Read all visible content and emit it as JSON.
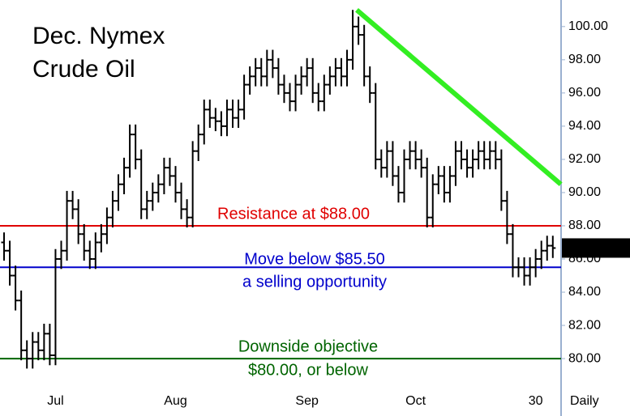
{
  "chart_data": {
    "type": "ohlc",
    "title_lines": [
      "Dec. Nymex",
      "Crude Oil"
    ],
    "x_label": "Daily",
    "categories": [
      null,
      null,
      null,
      null,
      null,
      null,
      null,
      null,
      null,
      "Jul",
      null,
      null,
      null,
      null,
      null,
      null,
      null,
      null,
      null,
      null,
      null,
      null,
      null,
      null,
      null,
      null,
      null,
      null,
      null,
      null,
      "Aug",
      null,
      null,
      null,
      null,
      null,
      null,
      null,
      null,
      null,
      null,
      null,
      null,
      null,
      null,
      null,
      null,
      null,
      null,
      null,
      null,
      null,
      null,
      "Sep",
      null,
      null,
      null,
      null,
      null,
      null,
      null,
      null,
      null,
      null,
      null,
      null,
      null,
      null,
      null,
      null,
      null,
      null,
      "Oct",
      null,
      null,
      null,
      null,
      null,
      null,
      null,
      null,
      null,
      null,
      null,
      null,
      null,
      null,
      null,
      null,
      null,
      null,
      null,
      null,
      "30",
      null,
      null,
      null
    ],
    "series": [
      {
        "color": "#000000",
        "open": [
          87.0,
          86.5,
          85.0,
          83.5,
          80.5,
          80.0,
          81.0,
          80.5,
          81.5,
          80.2,
          86.0,
          86.5,
          89.5,
          89.0,
          87.5,
          86.5,
          86.0,
          87.0,
          87.5,
          88.5,
          89.5,
          90.5,
          91.5,
          93.5,
          92.0,
          89.0,
          89.5,
          90.0,
          90.5,
          91.5,
          91.0,
          90.0,
          89.0,
          88.5,
          92.5,
          93.5,
          95.0,
          94.5,
          94.3,
          94.0,
          95.0,
          94.5,
          95.0,
          96.5,
          97.0,
          97.5,
          97.0,
          98.0,
          97.5,
          96.5,
          96.0,
          95.5,
          96.5,
          97.0,
          97.5,
          96.0,
          95.5,
          96.5,
          97.0,
          97.5,
          97.0,
          98.0,
          100.0,
          99.5,
          97.0,
          96.0,
          92.0,
          91.5,
          92.5,
          91.0,
          90.0,
          92.0,
          92.5,
          92.0,
          91.5,
          88.5,
          90.5,
          91.0,
          90.0,
          91.0,
          92.5,
          92.0,
          91.5,
          92.0,
          92.5,
          92.0,
          92.5,
          92.0,
          89.5,
          87.5,
          85.5,
          85.5,
          85.0,
          85.5,
          86.0,
          86.5,
          86.8
        ],
        "high": [
          87.6,
          87.1,
          85.6,
          84.1,
          81.1,
          81.6,
          81.6,
          82.1,
          82.1,
          86.6,
          87.1,
          90.1,
          90.1,
          89.6,
          88.1,
          87.1,
          87.6,
          88.1,
          89.1,
          90.1,
          91.1,
          92.1,
          94.1,
          94.1,
          92.6,
          90.1,
          90.6,
          91.1,
          92.1,
          92.1,
          91.6,
          90.6,
          89.6,
          93.1,
          94.1,
          95.6,
          95.6,
          95.1,
          94.9,
          95.6,
          95.6,
          95.6,
          97.1,
          97.6,
          98.1,
          98.1,
          98.6,
          98.6,
          98.1,
          97.1,
          96.6,
          97.1,
          97.6,
          98.1,
          98.1,
          96.6,
          97.1,
          97.6,
          98.1,
          98.1,
          98.6,
          101.0,
          100.6,
          100.1,
          97.6,
          96.6,
          92.6,
          93.1,
          93.1,
          91.6,
          92.6,
          93.1,
          93.1,
          92.6,
          92.1,
          91.1,
          91.6,
          91.6,
          91.6,
          93.1,
          93.1,
          92.6,
          92.6,
          93.1,
          93.1,
          93.1,
          93.1,
          92.6,
          90.1,
          88.1,
          86.1,
          86.1,
          86.1,
          86.6,
          87.1,
          87.4,
          87.4
        ],
        "low": [
          85.9,
          84.4,
          82.9,
          79.9,
          79.4,
          79.4,
          79.9,
          79.9,
          79.6,
          79.6,
          85.4,
          85.9,
          88.4,
          86.9,
          85.9,
          85.4,
          85.4,
          86.4,
          86.9,
          87.9,
          88.9,
          89.9,
          90.9,
          91.4,
          88.4,
          88.4,
          88.9,
          89.4,
          89.9,
          90.4,
          89.4,
          88.4,
          87.9,
          87.9,
          91.9,
          92.9,
          93.9,
          93.7,
          93.4,
          93.4,
          93.9,
          93.9,
          94.4,
          95.9,
          96.4,
          96.4,
          96.4,
          96.9,
          95.9,
          95.4,
          94.9,
          94.9,
          95.9,
          96.4,
          95.4,
          94.9,
          94.9,
          95.9,
          96.4,
          96.4,
          96.4,
          97.4,
          98.9,
          96.4,
          95.4,
          91.4,
          90.9,
          90.9,
          90.4,
          89.4,
          89.4,
          91.4,
          91.4,
          90.9,
          87.9,
          87.9,
          89.9,
          89.4,
          89.4,
          90.4,
          91.4,
          90.9,
          90.9,
          91.4,
          91.4,
          91.4,
          91.4,
          88.9,
          86.9,
          84.9,
          84.9,
          84.4,
          84.4,
          84.9,
          85.4,
          85.9,
          86.06
        ],
        "close": [
          86.5,
          85.0,
          83.5,
          80.5,
          80.0,
          81.0,
          80.5,
          81.5,
          80.2,
          86.0,
          86.5,
          89.5,
          89.0,
          87.5,
          86.5,
          86.0,
          87.0,
          87.5,
          88.5,
          89.5,
          90.5,
          91.5,
          93.5,
          92.0,
          89.0,
          89.5,
          90.0,
          90.5,
          91.5,
          91.0,
          90.0,
          89.0,
          88.5,
          92.5,
          93.5,
          95.0,
          94.5,
          94.3,
          94.0,
          95.0,
          94.5,
          95.0,
          96.5,
          97.0,
          97.5,
          97.0,
          98.0,
          97.5,
          96.5,
          96.0,
          95.5,
          96.5,
          97.0,
          97.5,
          96.0,
          95.5,
          96.5,
          97.0,
          97.5,
          97.0,
          98.0,
          100.0,
          99.5,
          97.0,
          96.0,
          92.0,
          91.5,
          92.5,
          91.0,
          90.0,
          92.0,
          92.5,
          92.0,
          91.5,
          88.5,
          90.5,
          91.0,
          90.0,
          91.0,
          92.5,
          92.0,
          91.5,
          92.0,
          92.5,
          92.0,
          92.5,
          92.0,
          89.5,
          87.5,
          85.5,
          85.5,
          85.0,
          85.5,
          86.0,
          86.5,
          86.8,
          86.66
        ]
      }
    ],
    "last_price": 86.66,
    "ylim": [
      78.2,
      101.6
    ],
    "yticks": [
      {
        "value": 80,
        "label": "80.00"
      },
      {
        "value": 82,
        "label": "82.00"
      },
      {
        "value": 84,
        "label": "84.00"
      },
      {
        "value": 86,
        "label": "86.00"
      },
      {
        "value": 88,
        "label": "88.00"
      },
      {
        "value": 90,
        "label": "90.00"
      },
      {
        "value": 92,
        "label": "92.00"
      },
      {
        "value": 94,
        "label": "94.00"
      },
      {
        "value": 96,
        "label": "96.00"
      },
      {
        "value": 98,
        "label": "98.00"
      },
      {
        "value": 100,
        "label": "100.00"
      }
    ],
    "hlines": [
      {
        "value": 88,
        "color": "#e00000",
        "label_lines": [
          "Resistance at $88.00"
        ]
      },
      {
        "value": 85.5,
        "color": "#0000cc",
        "label_lines": [
          "Move below $85.50",
          "a selling opportunity"
        ]
      },
      {
        "value": 80,
        "color": "#006400",
        "label_lines": [
          "Downside objective",
          "$80.00, or below"
        ]
      }
    ],
    "trendline": {
      "color": "#33ee22",
      "x": [
        61.7,
        97.4
      ],
      "values": [
        101.0,
        90.5
      ]
    }
  }
}
